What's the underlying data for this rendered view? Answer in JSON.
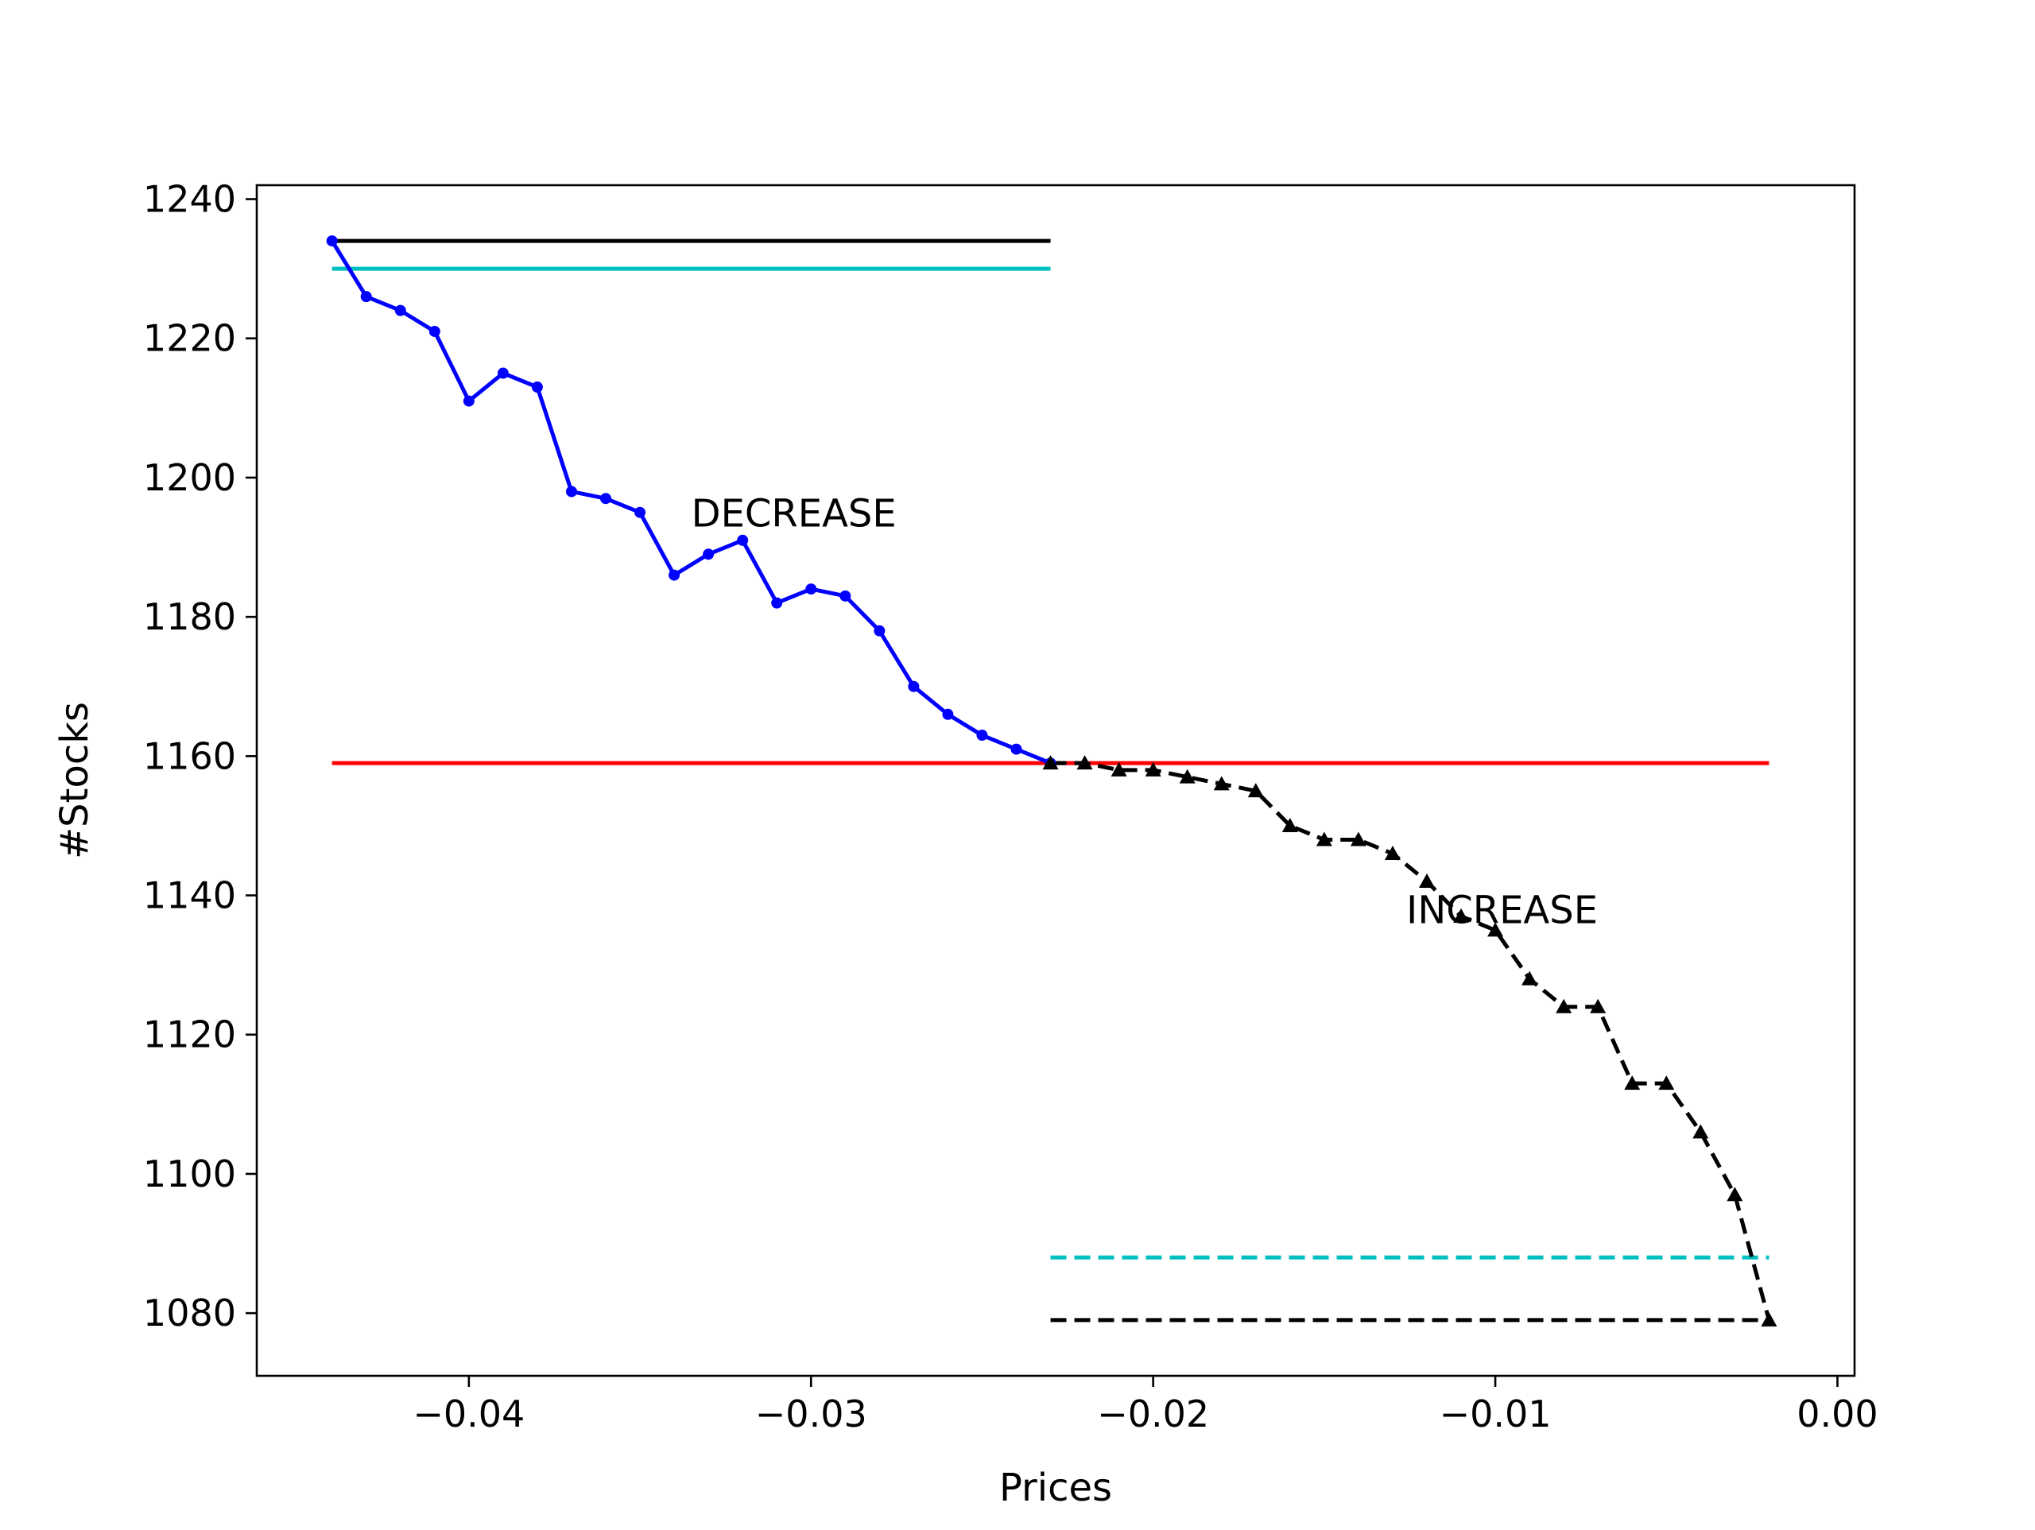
{
  "chart_data": {
    "type": "line",
    "title": "",
    "xlabel": "Prices",
    "ylabel": "#Stocks",
    "xlim": [
      -0.0462,
      0.0005
    ],
    "ylim": [
      1071,
      1242
    ],
    "xticks": [
      -0.04,
      -0.03,
      -0.02,
      -0.01,
      0.0
    ],
    "xtick_labels": [
      "−0.04",
      "−0.03",
      "−0.02",
      "−0.01",
      "0.00"
    ],
    "yticks": [
      1080,
      1100,
      1120,
      1140,
      1160,
      1180,
      1200,
      1220,
      1240
    ],
    "ytick_labels": [
      "1080",
      "1100",
      "1120",
      "1140",
      "1160",
      "1180",
      "1200",
      "1220",
      "1240"
    ],
    "grid": false,
    "legend": "none",
    "series": [
      {
        "style": "solid",
        "marker": "circle",
        "color": "#0000ff",
        "x": [
          -0.044,
          -0.043,
          -0.042,
          -0.041,
          -0.04,
          -0.039,
          -0.038,
          -0.037,
          -0.036,
          -0.035,
          -0.034,
          -0.033,
          -0.032,
          -0.031,
          -0.03,
          -0.029,
          -0.028,
          -0.027,
          -0.026,
          -0.025,
          -0.024,
          -0.023
        ],
        "y": [
          1234,
          1226,
          1224,
          1221,
          1211,
          1215,
          1213,
          1198,
          1197,
          1195,
          1186,
          1189,
          1191,
          1182,
          1184,
          1183,
          1178,
          1170,
          1166,
          1163,
          1161,
          1159
        ]
      },
      {
        "style": "dashed",
        "marker": "triangle",
        "color": "#000000",
        "x": [
          -0.023,
          -0.022,
          -0.021,
          -0.02,
          -0.019,
          -0.018,
          -0.017,
          -0.016,
          -0.015,
          -0.014,
          -0.013,
          -0.012,
          -0.011,
          -0.01,
          -0.009,
          -0.008,
          -0.007,
          -0.006,
          -0.005,
          -0.004,
          -0.003,
          -0.002
        ],
        "y": [
          1159,
          1159,
          1158,
          1158,
          1157,
          1156,
          1155,
          1150,
          1148,
          1148,
          1146,
          1142,
          1137,
          1135,
          1128,
          1124,
          1124,
          1113,
          1113,
          1106,
          1097,
          1079
        ]
      }
    ],
    "reference_lines": [
      {
        "y": 1234,
        "x_range": [
          -0.044,
          -0.023
        ],
        "color": "#000000",
        "style": "solid"
      },
      {
        "y": 1230,
        "x_range": [
          -0.044,
          -0.023
        ],
        "color": "#00bfbf",
        "style": "solid"
      },
      {
        "y": 1159,
        "x_range": [
          -0.044,
          -0.002
        ],
        "color": "#ff0000",
        "style": "solid"
      },
      {
        "y": 1088,
        "x_range": [
          -0.023,
          -0.002
        ],
        "color": "#00bfbf",
        "style": "dashed"
      },
      {
        "y": 1079,
        "x_range": [
          -0.023,
          -0.002
        ],
        "color": "#000000",
        "style": "dashed"
      }
    ],
    "annotations": [
      {
        "text": "DECREASE",
        "x": -0.0335,
        "y": 1193
      },
      {
        "text": "INCREASE",
        "x": -0.0126,
        "y": 1136
      }
    ]
  }
}
